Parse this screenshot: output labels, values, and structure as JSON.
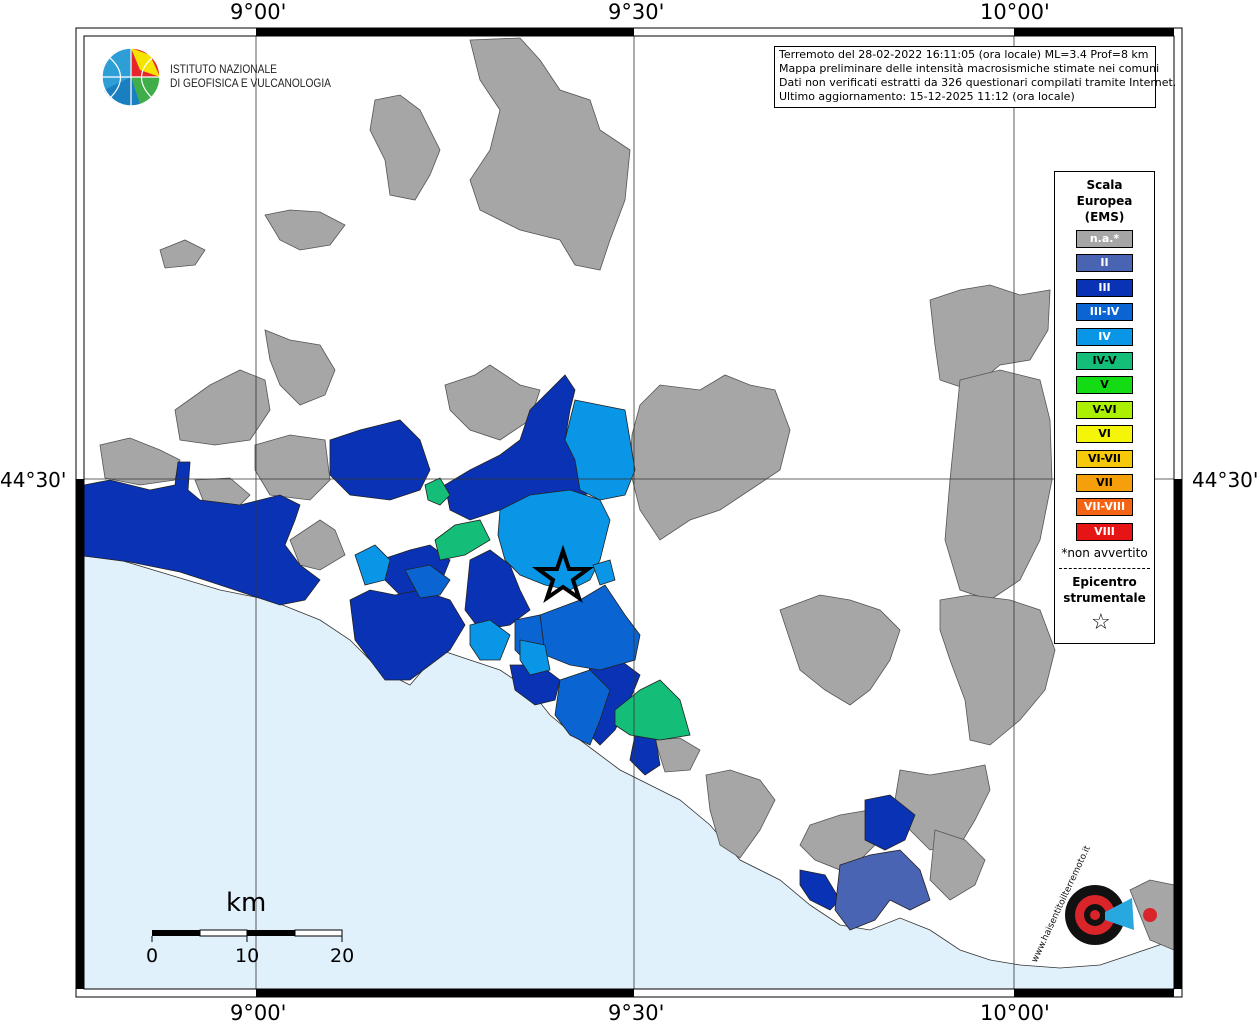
{
  "axes": {
    "lon_ticks": [
      "9°00'",
      "9°30'",
      "10°00'"
    ],
    "lat_ticks": [
      "44°30'"
    ]
  },
  "institute": {
    "name_line1": "ISTITUTO NAZIONALE",
    "name_line2": "DI GEOFISICA E VULCANOLOGIA"
  },
  "info": {
    "line1": "Terremoto del 28-02-2022 16:11:05 (ora locale) ML=3.4 Prof=8 km",
    "line2": "Mappa preliminare delle intensità macrosismiche stimate nei comuni",
    "line3": "Dati non verificati estratti da 326 questionari compilati tramite Internet.",
    "line4": "Ultimo aggiornamento: 15-12-2025 11:12 (ora locale)"
  },
  "legend": {
    "title_line1": "Scala",
    "title_line2": "Europea",
    "title_line3": "(EMS)",
    "items": [
      {
        "label": "n.a.*",
        "color": "#a6a6a6"
      },
      {
        "label": "II",
        "color": "#4a64b4"
      },
      {
        "label": "III",
        "color": "#0a32b4"
      },
      {
        "label": "III-IV",
        "color": "#0a64d2"
      },
      {
        "label": "IV",
        "color": "#0a96e6"
      },
      {
        "label": "IV-V",
        "color": "#14be78"
      },
      {
        "label": "V",
        "color": "#14dc14"
      },
      {
        "label": "V-VI",
        "color": "#aaf000"
      },
      {
        "label": "VI",
        "color": "#f5f50a"
      },
      {
        "label": "VI-VII",
        "color": "#f5c80a"
      },
      {
        "label": "VII",
        "color": "#f5a00a"
      },
      {
        "label": "VII-VIII",
        "color": "#f56414"
      },
      {
        "label": "VIII",
        "color": "#e61414"
      }
    ],
    "note": "*non avvertito",
    "epicenter_line1": "Epicentro",
    "epicenter_line2": "strumentale"
  },
  "scalebar": {
    "unit": "km",
    "labels": [
      "0",
      "10",
      "20"
    ]
  },
  "colors": {
    "sea": "#e1f1fb",
    "na": "#a6a6a6",
    "ii": "#4a64b4",
    "iii": "#0a32b4",
    "iii_iv": "#0a64d2",
    "iv": "#0a96e6",
    "iv_v": "#14be78"
  },
  "watermark": "www.haisentitoilterremoto.it"
}
